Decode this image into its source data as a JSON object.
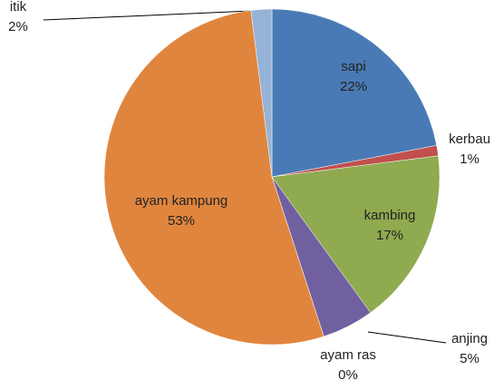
{
  "chart_data": {
    "type": "pie",
    "categories": [
      "sapi",
      "kerbau",
      "kambing",
      "anjing",
      "ayam ras",
      "ayam kampung",
      "itik"
    ],
    "values": [
      22,
      1,
      17,
      5,
      0,
      53,
      2
    ],
    "value_labels": [
      "22%",
      "1%",
      "17%",
      "5%",
      "0%",
      "53%",
      "2%"
    ],
    "colors": [
      "#4a7ab5",
      "#c0504d",
      "#8faa4f",
      "#7160a0",
      "#4bacc6",
      "#e0853e",
      "#95b3d7"
    ]
  }
}
